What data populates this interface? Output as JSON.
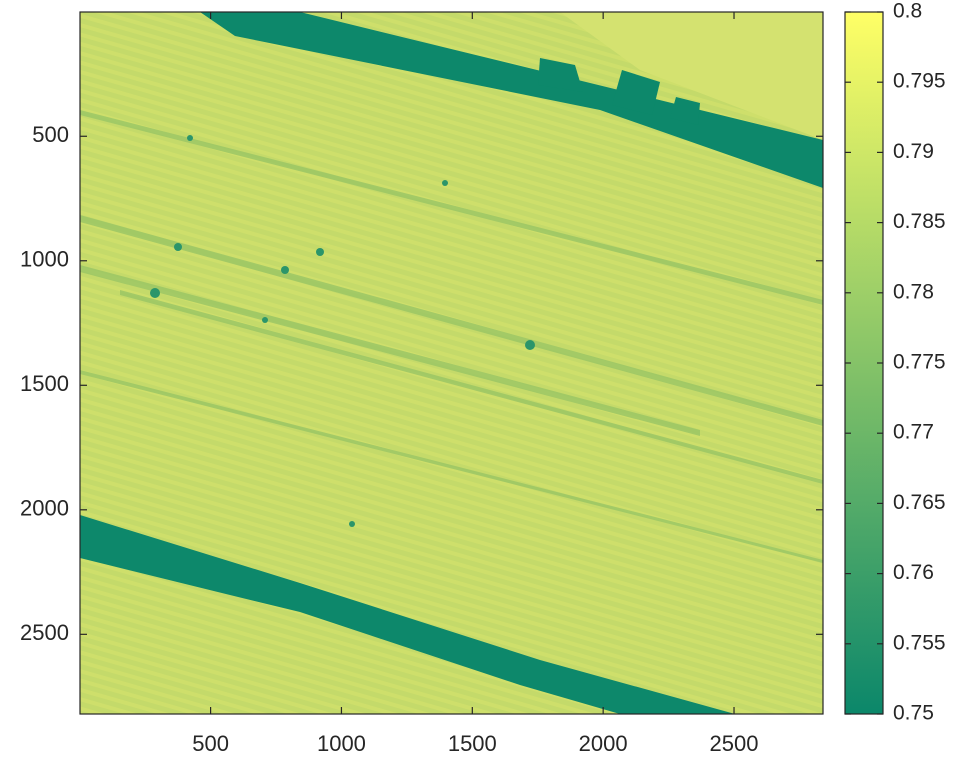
{
  "chart_data": {
    "type": "heatmap",
    "xlim": [
      1,
      2840
    ],
    "xticks": [
      500,
      1000,
      1500,
      2000,
      2500
    ],
    "ylim": [
      1,
      2820
    ],
    "yticks": [
      500,
      1000,
      1500,
      2000,
      2500
    ],
    "y_reversed": true,
    "colormap": [
      "#0b876a",
      "#ffff66"
    ],
    "colorbar": {
      "lim": [
        0.75,
        0.8
      ],
      "ticks": [
        0.75,
        0.755,
        0.76,
        0.765,
        0.77,
        0.775,
        0.78,
        0.785,
        0.79,
        0.795,
        0.8
      ]
    }
  }
}
